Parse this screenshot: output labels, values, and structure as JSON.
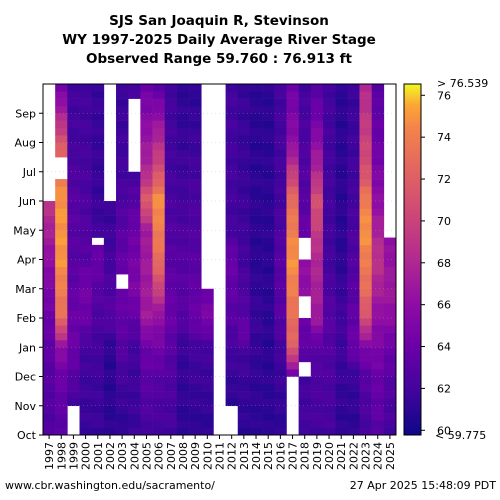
{
  "chart_data": {
    "type": "heatmap",
    "title_lines": [
      "SJS San Joaquin R, Stevinson",
      "WY 1997-2025 Daily Average River Stage",
      "Observed Range 59.760 : 76.913 ft"
    ],
    "x_categories": [
      "1997",
      "1998",
      "1999",
      "2000",
      "2001",
      "2002",
      "2003",
      "2004",
      "2005",
      "2006",
      "2007",
      "2008",
      "2009",
      "2010",
      "2011",
      "2012",
      "2013",
      "2014",
      "2015",
      "2016",
      "2017",
      "2018",
      "2019",
      "2020",
      "2021",
      "2022",
      "2023",
      "2024",
      "2025"
    ],
    "y_months": [
      "Oct",
      "Nov",
      "Dec",
      "Jan",
      "Feb",
      "Mar",
      "Apr",
      "May",
      "Jun",
      "Jul",
      "Aug",
      "Sep"
    ],
    "colorbar": {
      "min": 59.775,
      "max": 76.539,
      "ticks": [
        60,
        62,
        64,
        66,
        68,
        70,
        72,
        74,
        76
      ],
      "top_label": "> 76.539",
      "bottom_label": "< 59.775",
      "colormap": "plasma"
    },
    "year_profiles": {
      "1997": [
        [
          0,
          62.5
        ],
        [
          2,
          63
        ],
        [
          4,
          64
        ],
        [
          6,
          66
        ],
        [
          8,
          69
        ],
        [
          8.3,
          null
        ],
        [
          12,
          null
        ]
      ],
      "1998": [
        [
          0,
          63
        ],
        [
          2,
          64
        ],
        [
          3,
          66
        ],
        [
          4,
          73
        ],
        [
          6,
          75
        ],
        [
          8,
          75
        ],
        [
          8.8,
          74
        ],
        [
          9.3,
          null
        ],
        [
          9.5,
          73
        ],
        [
          12,
          64
        ]
      ],
      "1999": [
        [
          0,
          62
        ],
        [
          0.8,
          null
        ],
        [
          1,
          62
        ],
        [
          3,
          64
        ],
        [
          4,
          64
        ],
        [
          6,
          63
        ],
        [
          8,
          63
        ],
        [
          10,
          62
        ],
        [
          12,
          62
        ]
      ],
      "2000": [
        [
          0,
          61.5
        ],
        [
          3,
          62
        ],
        [
          4,
          64
        ],
        [
          5,
          64.5
        ],
        [
          6,
          63
        ],
        [
          8,
          62.5
        ],
        [
          10,
          62
        ],
        [
          12,
          62
        ]
      ],
      "2001": [
        [
          0,
          61.5
        ],
        [
          3,
          62
        ],
        [
          5,
          63
        ],
        [
          6,
          64
        ],
        [
          6.5,
          63
        ],
        [
          6.6,
          null
        ],
        [
          6.7,
          62
        ],
        [
          8,
          61.5
        ],
        [
          12,
          61.5
        ]
      ],
      "2002": [
        [
          0,
          61
        ],
        [
          3,
          61
        ],
        [
          4,
          63
        ],
        [
          6,
          62
        ],
        [
          8,
          61.5
        ],
        [
          8.5,
          null
        ],
        [
          9,
          61
        ],
        [
          9.5,
          null
        ],
        [
          12,
          null
        ]
      ],
      "2003": [
        [
          0,
          61
        ],
        [
          2,
          62
        ],
        [
          3,
          63
        ],
        [
          5,
          64
        ],
        [
          5.2,
          null
        ],
        [
          5.4,
          64
        ],
        [
          7,
          63
        ],
        [
          9,
          62
        ],
        [
          12,
          61.5
        ]
      ],
      "2004": [
        [
          0,
          61.5
        ],
        [
          3,
          62
        ],
        [
          5,
          65
        ],
        [
          7,
          64
        ],
        [
          9,
          62
        ],
        [
          10,
          null
        ],
        [
          11,
          null
        ],
        [
          11.5,
          62
        ],
        [
          12,
          62
        ]
      ],
      "2005": [
        [
          0,
          62
        ],
        [
          3,
          64
        ],
        [
          4,
          67
        ],
        [
          7,
          67
        ],
        [
          8,
          72
        ],
        [
          9,
          68
        ],
        [
          12,
          64
        ]
      ],
      "2006": [
        [
          0,
          62
        ],
        [
          2,
          63
        ],
        [
          4,
          66
        ],
        [
          5,
          70
        ],
        [
          6,
          73
        ],
        [
          8,
          75
        ],
        [
          9,
          71
        ],
        [
          12,
          63
        ]
      ],
      "2007": [
        [
          0,
          62
        ],
        [
          3,
          63
        ],
        [
          4,
          64
        ],
        [
          6,
          63
        ],
        [
          9,
          62
        ],
        [
          12,
          62
        ]
      ],
      "2008": [
        [
          0,
          61
        ],
        [
          3,
          61.5
        ],
        [
          4,
          63
        ],
        [
          6,
          63
        ],
        [
          8,
          62
        ],
        [
          12,
          61
        ]
      ],
      "2009": [
        [
          0,
          61
        ],
        [
          3,
          62
        ],
        [
          4,
          64
        ],
        [
          6,
          63
        ],
        [
          9,
          62
        ],
        [
          12,
          61
        ]
      ],
      "2010": [
        [
          0,
          61
        ],
        [
          3,
          62
        ],
        [
          4,
          65
        ],
        [
          5,
          64
        ],
        [
          5.1,
          null
        ],
        [
          12,
          null
        ]
      ],
      "2011": [
        [
          0,
          null
        ],
        [
          12,
          null
        ]
      ],
      "2012": [
        [
          0,
          null
        ],
        [
          1,
          null
        ],
        [
          1,
          61
        ],
        [
          3,
          62
        ],
        [
          4,
          63
        ],
        [
          6,
          64
        ],
        [
          7,
          62
        ],
        [
          9,
          62
        ],
        [
          12,
          62
        ]
      ],
      "2013": [
        [
          0,
          61
        ],
        [
          3,
          62
        ],
        [
          3.3,
          64
        ],
        [
          4,
          63
        ],
        [
          6,
          62
        ],
        [
          9,
          61.5
        ],
        [
          12,
          61.5
        ]
      ],
      "2014": [
        [
          0,
          61
        ],
        [
          4,
          61.5
        ],
        [
          6,
          61
        ],
        [
          9,
          61
        ],
        [
          12,
          61
        ]
      ],
      "2015": [
        [
          0,
          61
        ],
        [
          4,
          61
        ],
        [
          6,
          61
        ],
        [
          9,
          61
        ],
        [
          12,
          61
        ]
      ],
      "2016": [
        [
          0,
          61
        ],
        [
          3,
          62
        ],
        [
          4,
          63
        ],
        [
          6,
          63
        ],
        [
          8,
          62
        ],
        [
          12,
          62
        ]
      ],
      "2017": [
        [
          0,
          62
        ],
        [
          1.8,
          null
        ],
        [
          2,
          64
        ],
        [
          3,
          72
        ],
        [
          6,
          75
        ],
        [
          8,
          73
        ],
        [
          10,
          66
        ],
        [
          12,
          64
        ]
      ],
      "2018": [
        [
          0,
          62
        ],
        [
          2,
          62
        ],
        [
          2.3,
          null
        ],
        [
          2.5,
          63
        ],
        [
          4,
          64
        ],
        [
          4.5,
          null
        ],
        [
          4.8,
          66
        ],
        [
          6,
          66
        ],
        [
          6.6,
          null
        ],
        [
          6.8,
          64
        ],
        [
          8,
          63
        ],
        [
          12,
          62
        ]
      ],
      "2019": [
        [
          0,
          62
        ],
        [
          3,
          63
        ],
        [
          4,
          67
        ],
        [
          6,
          68
        ],
        [
          8,
          71
        ],
        [
          9,
          68
        ],
        [
          11,
          64
        ],
        [
          12,
          63
        ]
      ],
      "2020": [
        [
          0,
          62
        ],
        [
          4,
          63
        ],
        [
          6,
          62
        ],
        [
          9,
          62
        ],
        [
          12,
          62
        ]
      ],
      "2021": [
        [
          0,
          61
        ],
        [
          4,
          62
        ],
        [
          6,
          61
        ],
        [
          9,
          61
        ],
        [
          12,
          61
        ]
      ],
      "2022": [
        [
          0,
          61
        ],
        [
          2,
          61.5
        ],
        [
          3,
          64
        ],
        [
          5,
          63
        ],
        [
          8,
          62
        ],
        [
          12,
          61.5
        ]
      ],
      "2023": [
        [
          0,
          62
        ],
        [
          2,
          63
        ],
        [
          3,
          65
        ],
        [
          4,
          71
        ],
        [
          5,
          73
        ],
        [
          7,
          75
        ],
        [
          8,
          74
        ],
        [
          9,
          71
        ],
        [
          11,
          69
        ],
        [
          12,
          68
        ]
      ],
      "2024": [
        [
          0,
          63
        ],
        [
          2,
          64
        ],
        [
          4,
          66
        ],
        [
          6,
          69
        ],
        [
          8,
          66
        ],
        [
          10,
          64
        ],
        [
          12,
          63
        ]
      ],
      "2025": [
        [
          0,
          62
        ],
        [
          2,
          63
        ],
        [
          3,
          64
        ],
        [
          4,
          66
        ],
        [
          5,
          67
        ],
        [
          6.7,
          66
        ],
        [
          6.9,
          null
        ],
        [
          12,
          null
        ]
      ]
    }
  },
  "footer": {
    "url": "www.cbr.washington.edu/sacramento/",
    "timestamp": "27 Apr 2025 15:48:09 PDT"
  }
}
